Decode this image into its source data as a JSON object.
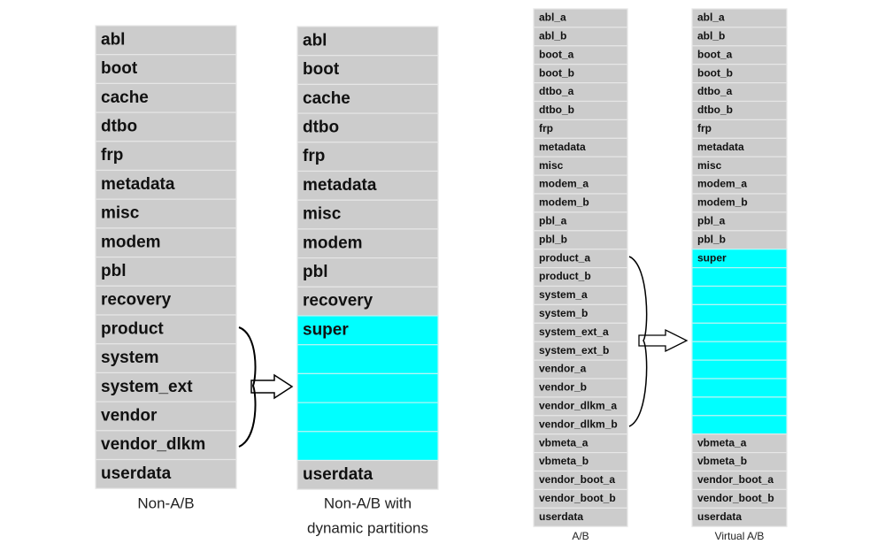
{
  "columns": [
    {
      "rows": [
        "abl",
        "boot",
        "cache",
        "dtbo",
        "frp",
        "metadata",
        "misc",
        "modem",
        "pbl",
        "recovery",
        "product",
        "system",
        "system_ext",
        "vendor",
        "vendor_dlkm",
        "userdata"
      ],
      "caption": [
        "Non-A/B"
      ]
    },
    {
      "rows": [
        "abl",
        "boot",
        "cache",
        "dtbo",
        "frp",
        "metadata",
        "misc",
        "modem",
        "pbl",
        "recovery",
        "super",
        "userdata"
      ],
      "caption": [
        "Non-A/B with",
        "dynamic partitions"
      ]
    },
    {
      "rows": [
        "abl_a",
        "abl_b",
        "boot_a",
        "boot_b",
        "dtbo_a",
        "dtbo_b",
        "frp",
        "metadata",
        "misc",
        "modem_a",
        "modem_b",
        "pbl_a",
        "pbl_b",
        "product_a",
        "product_b",
        "system_a",
        "system_b",
        "system_ext_a",
        "system_ext_b",
        "vendor_a",
        "vendor_b",
        "vendor_dlkm_a",
        "vendor_dlkm_b",
        "vbmeta_a",
        "vbmeta_b",
        "vendor_boot_a",
        "vendor_boot_b",
        "userdata"
      ],
      "caption": [
        "A/B"
      ]
    },
    {
      "rows": [
        "abl_a",
        "abl_b",
        "boot_a",
        "boot_b",
        "dtbo_a",
        "dtbo_b",
        "frp",
        "metadata",
        "misc",
        "modem_a",
        "modem_b",
        "pbl_a",
        "pbl_b",
        "super",
        "vbmeta_a",
        "vbmeta_b",
        "vendor_boot_a",
        "vendor_boot_b",
        "userdata"
      ],
      "caption": [
        "Virtual A/B"
      ]
    }
  ]
}
